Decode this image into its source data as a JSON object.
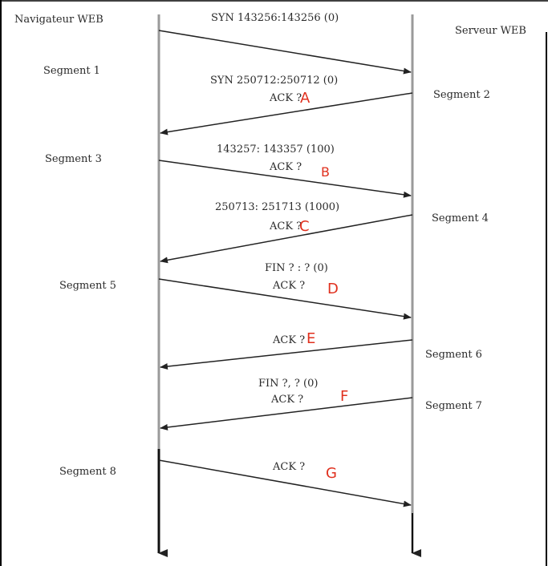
{
  "endpoints": {
    "client": "Navigateur WEB",
    "server": "Serveur WEB"
  },
  "segment_labels": {
    "s1": "Segment 1",
    "s2": "Segment 2",
    "s3": "Segment 3",
    "s4": "Segment 4",
    "s5": "Segment 5",
    "s6": "Segment 6",
    "s7": "Segment 7",
    "s8": "Segment 8"
  },
  "messages": {
    "m1": {
      "seq": "SYN 143256:143256 (0)"
    },
    "m2": {
      "seq": "SYN 250712:250712 (0)",
      "ack": "ACK ?",
      "letter": "A"
    },
    "m3": {
      "seq": "143257: 143357 (100)",
      "ack": "ACK ?",
      "letter": "B"
    },
    "m4": {
      "seq": "250713: 251713 (1000)",
      "ack": "ACK ?",
      "letter": "C"
    },
    "m5": {
      "seq": "FIN ? : ? (0)",
      "ack": "ACK ?",
      "letter": "D"
    },
    "m6": {
      "ack": "ACK ?",
      "letter": "E"
    },
    "m7": {
      "seq": "FIN ?, ? (0)",
      "ack": "ACK ?",
      "letter": "F"
    },
    "m8": {
      "ack": "ACK ?",
      "letter": "G"
    }
  },
  "colors": {
    "timeline": "#9a9a9a",
    "arrow": "#222222",
    "letter": "#e0301e",
    "border": "#000000"
  }
}
